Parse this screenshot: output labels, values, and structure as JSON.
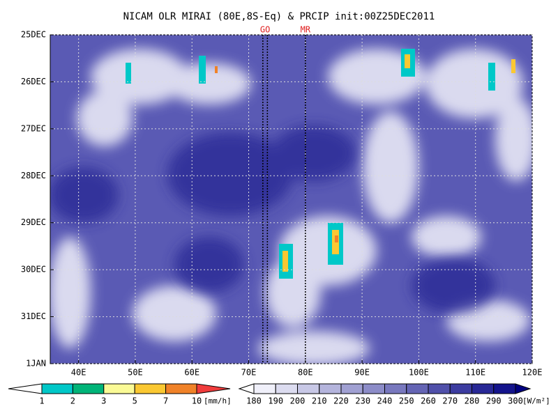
{
  "chart_data": {
    "type": "hovmoller",
    "title": "NICAM OLR MIRAI (80E,8S-Eq) & PRCIP init:00Z25DEC2011",
    "xlim": [
      35,
      120
    ],
    "xticks": [
      {
        "value": 40,
        "label": "40E"
      },
      {
        "value": 50,
        "label": "50E"
      },
      {
        "value": 60,
        "label": "60E"
      },
      {
        "value": 70,
        "label": "70E"
      },
      {
        "value": 80,
        "label": "80E"
      },
      {
        "value": 90,
        "label": "90E"
      },
      {
        "value": 100,
        "label": "100E"
      },
      {
        "value": 110,
        "label": "110E"
      },
      {
        "value": 120,
        "label": "120E"
      }
    ],
    "ylim": [
      0,
      7
    ],
    "y_reversed": true,
    "yticks": [
      {
        "value": 0,
        "label": "25DEC"
      },
      {
        "value": 1,
        "label": "26DEC"
      },
      {
        "value": 2,
        "label": "27DEC"
      },
      {
        "value": 3,
        "label": "28DEC"
      },
      {
        "value": 4,
        "label": "29DEC"
      },
      {
        "value": 5,
        "label": "30DEC"
      },
      {
        "value": 6,
        "label": "31DEC"
      },
      {
        "value": 7,
        "label": "1JAN"
      }
    ],
    "grid": true,
    "markers": [
      {
        "label": "GO",
        "x": [
          72.5,
          73.3
        ]
      },
      {
        "label": "MR",
        "x": [
          80
        ]
      }
    ],
    "colorbars": [
      {
        "unit": "[mm/h]",
        "levels": [
          1,
          2,
          3,
          5,
          7,
          10
        ],
        "colors": [
          "#ffffff",
          "#00c8c8",
          "#00b478",
          "#fafa96",
          "#fac832",
          "#f08228",
          "#f03c3c"
        ]
      },
      {
        "unit": "[W/m²]",
        "levels": [
          180,
          190,
          200,
          210,
          220,
          230,
          240,
          250,
          260,
          270,
          280,
          290,
          300
        ],
        "colors": [
          "#ffffff",
          "#f0f0fa",
          "#dcdcf0",
          "#c8c8e6",
          "#b4b4dc",
          "#a0a0d2",
          "#8c8cc8",
          "#7878be",
          "#6464b4",
          "#5050aa",
          "#3c3ca0",
          "#282896",
          "#14148c",
          "#000080"
        ]
      }
    ]
  }
}
